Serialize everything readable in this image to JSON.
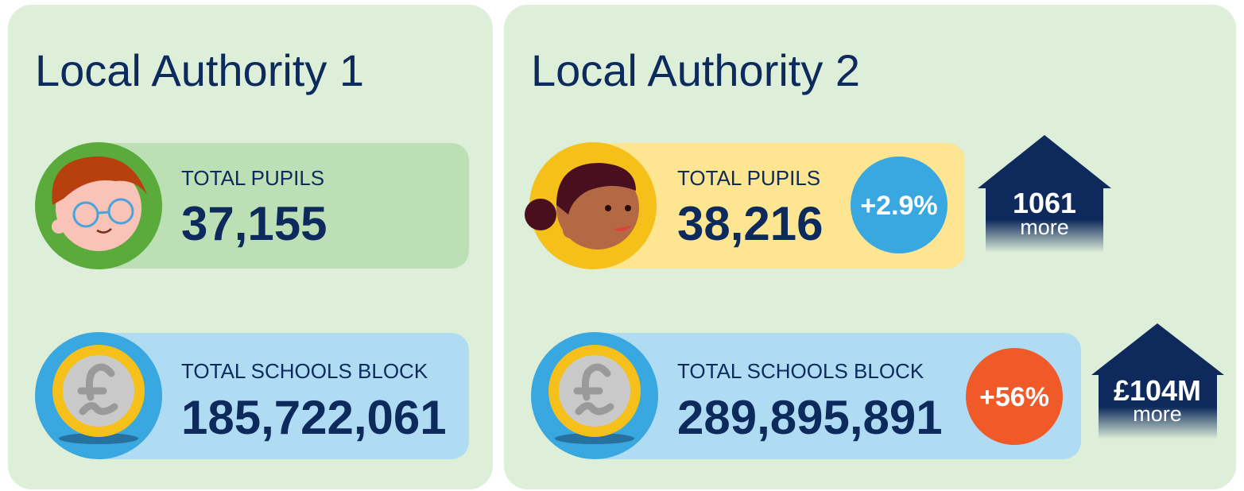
{
  "panels": [
    {
      "title": "Local Authority 1",
      "stats": [
        {
          "label": "TOTAL PUPILS",
          "value": "37,155"
        },
        {
          "label": "TOTAL SCHOOLS BLOCK",
          "value": "185,722,061"
        }
      ]
    },
    {
      "title": "Local Authority 2",
      "stats": [
        {
          "label": "TOTAL PUPILS",
          "value": "38,216",
          "change": "+2.9%",
          "difference": "1061",
          "difference_note": "more"
        },
        {
          "label": "TOTAL SCHOOLS BLOCK",
          "value": "289,895,891",
          "change": "+56%",
          "difference": "£104M",
          "difference_note": "more"
        }
      ]
    }
  ]
}
